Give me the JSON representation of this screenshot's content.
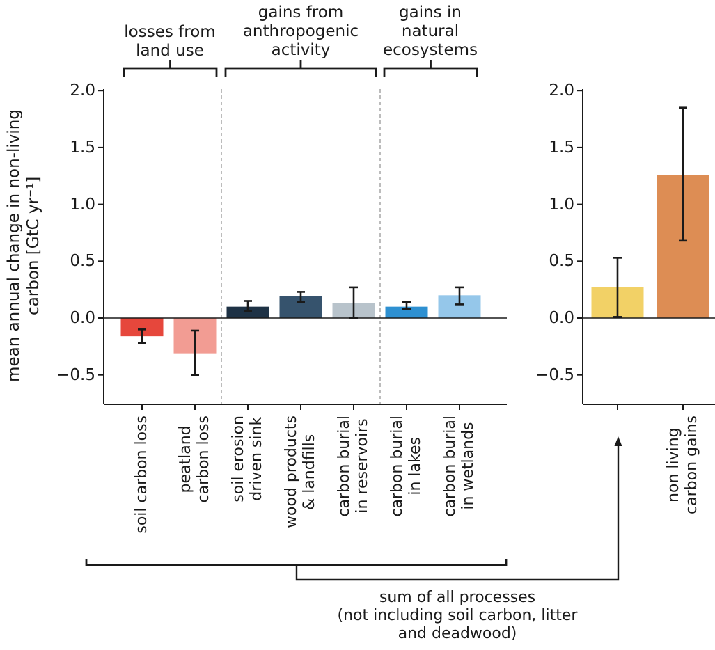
{
  "figure": {
    "ylabel": "mean annual change in non-living\ncarbon [GtC yr⁻¹]",
    "group_headers": [
      {
        "label": "losses from\nland use"
      },
      {
        "label": "gains from\nanthropogenic\nactivity"
      },
      {
        "label": "gains in\nnatural\necosystems"
      }
    ],
    "sum_annotation": "sum of all processes\n(not including soil carbon, litter\nand deadwood)",
    "ink_color": "#1a1a1a",
    "separator_color": "#a0a0a0"
  },
  "chart_data": [
    {
      "type": "bar",
      "panel": "left",
      "title": "",
      "xlabel": "",
      "ylabel": "mean annual change in non-living carbon [GtC yr⁻¹]",
      "ylim": [
        -0.76,
        2.05
      ],
      "yticks": [
        2.0,
        1.5,
        1.0,
        0.5,
        0.0,
        -0.5
      ],
      "grid": false,
      "categories": [
        "soil carbon loss",
        "peatland\ncarbon loss",
        "soil erosion\ndriven sink",
        "wood products\n& landfills",
        "carbon burial\nin reservoirs",
        "carbon burial\nin lakes",
        "carbon burial\nin wetlands"
      ],
      "values": [
        -0.16,
        -0.31,
        0.1,
        0.19,
        0.13,
        0.1,
        0.2
      ],
      "error_low": [
        -0.22,
        -0.5,
        0.06,
        0.14,
        0.0,
        0.08,
        0.12
      ],
      "error_high": [
        -0.1,
        -0.11,
        0.15,
        0.23,
        0.27,
        0.14,
        0.27
      ],
      "bar_colors": [
        "#e6473c",
        "#f29c93",
        "#1e3245",
        "#36536d",
        "#b8c3cb",
        "#2e90d1",
        "#95c7ea"
      ],
      "bar_groups": [
        "losses from land use",
        "losses from land use",
        "gains from anthropogenic activity",
        "gains from anthropogenic activity",
        "gains from anthropogenic activity",
        "gains in natural ecosystems",
        "gains in natural ecosystems"
      ]
    },
    {
      "type": "bar",
      "panel": "right",
      "title": "",
      "xlabel": "",
      "ylabel": "",
      "ylim": [
        -0.76,
        2.05
      ],
      "yticks": [
        2.0,
        1.5,
        1.0,
        0.5,
        0.0,
        -0.5
      ],
      "grid": false,
      "categories": [
        "",
        "non living\ncarbon gains"
      ],
      "values": [
        0.27,
        1.26
      ],
      "error_low": [
        0.01,
        0.68
      ],
      "error_high": [
        0.53,
        1.85
      ],
      "bar_colors": [
        "#f2d166",
        "#dd8d54"
      ],
      "bar_groups": [
        "sum of all processes (not including soil carbon, litter and deadwood)",
        "non living carbon gains"
      ]
    }
  ]
}
